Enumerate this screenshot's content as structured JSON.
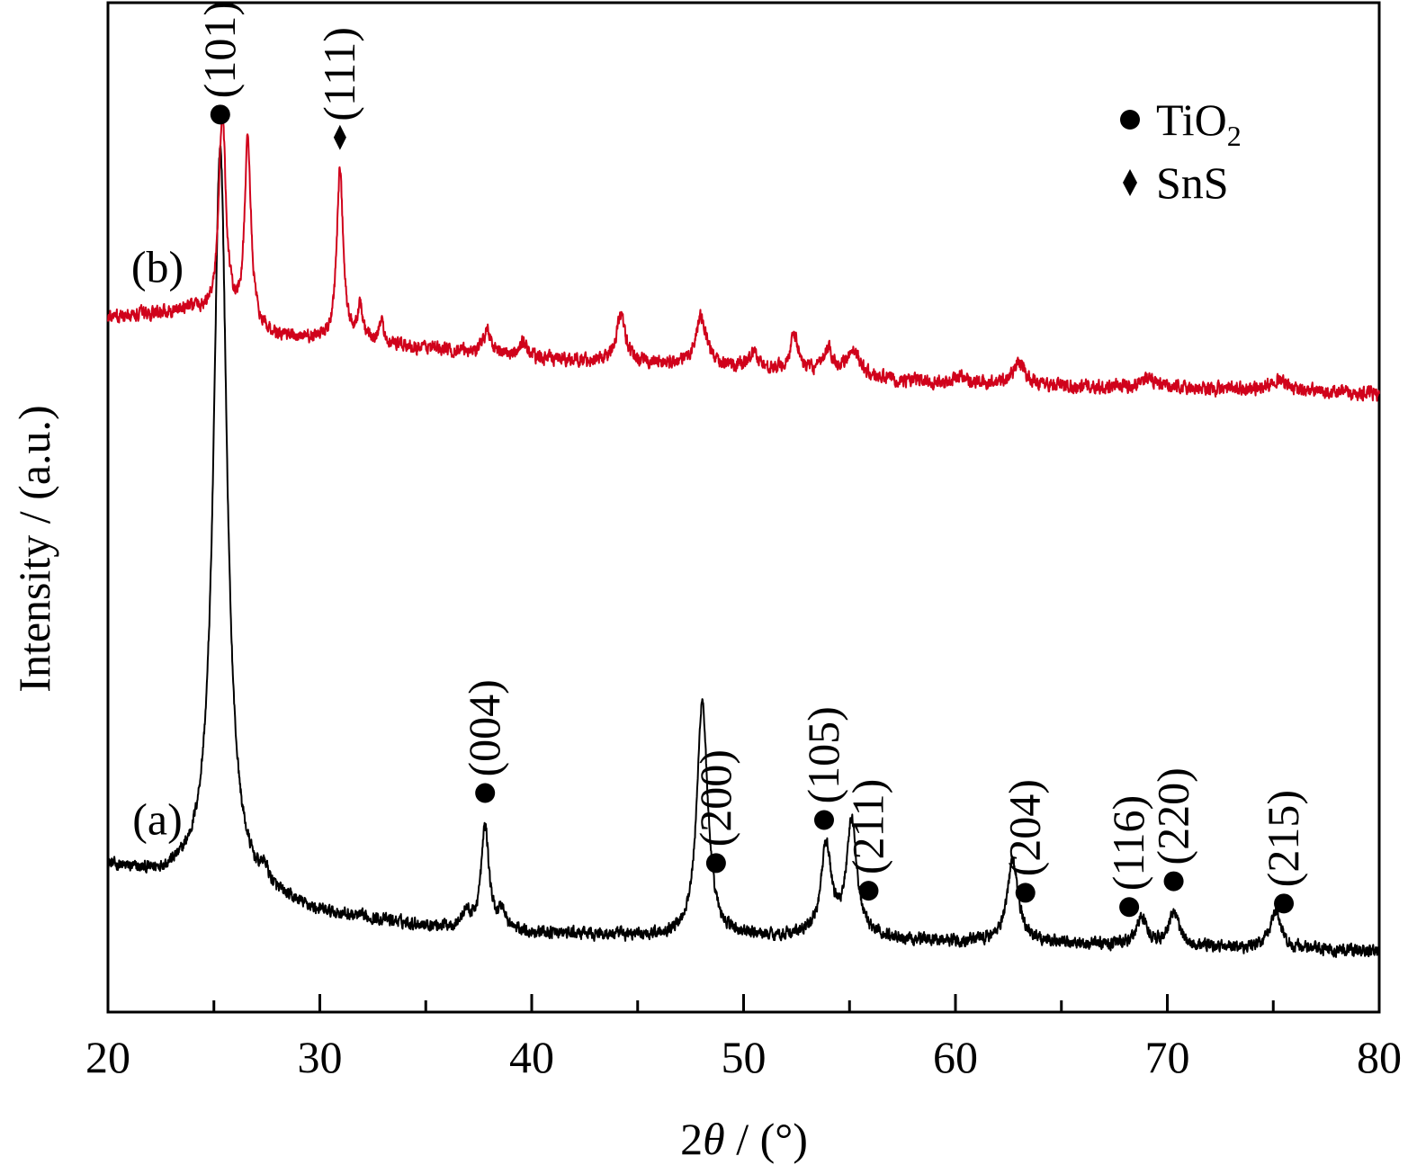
{
  "chart_data": {
    "type": "line",
    "title": "",
    "xlabel_prefix": "2",
    "xlabel_symbol": "θ",
    "xlabel_suffix": " / (°)",
    "ylabel": "Intensity / (a.u.)",
    "xlim": [
      20,
      80
    ],
    "ylim": [
      0,
      100
    ],
    "x_ticks": [
      20,
      30,
      40,
      50,
      60,
      70,
      80
    ],
    "x_minor_ticks": [
      25,
      35,
      45,
      55,
      65,
      75
    ],
    "grid": false,
    "legend": {
      "position": "top-right",
      "entries": [
        {
          "marker": "circle",
          "text_main": "TiO",
          "text_sub": "2"
        },
        {
          "marker": "diamond",
          "text_main": "SnS",
          "text_sub": ""
        }
      ]
    },
    "series": [
      {
        "label": "(a)",
        "color": "#000000",
        "baseline": [
          [
            20,
            14.4
          ],
          [
            22,
            13.4
          ],
          [
            25,
            13.0
          ],
          [
            27,
            11.5
          ],
          [
            30,
            9.7
          ],
          [
            35,
            8.5
          ],
          [
            40,
            7.8
          ],
          [
            45,
            7.5
          ],
          [
            50,
            7.4
          ],
          [
            55,
            7.3
          ],
          [
            60,
            7.0
          ],
          [
            65,
            6.8
          ],
          [
            70,
            6.5
          ],
          [
            75,
            6.3
          ],
          [
            80,
            6.0
          ]
        ],
        "peaks": [
          {
            "x": 25.3,
            "height": 73.0,
            "width": 0.38
          },
          {
            "x": 27.4,
            "height": 1.5,
            "width": 0.2
          },
          {
            "x": 36.9,
            "height": 1.5,
            "width": 0.2
          },
          {
            "x": 37.8,
            "height": 10.2,
            "width": 0.22
          },
          {
            "x": 38.6,
            "height": 1.8,
            "width": 0.2
          },
          {
            "x": 48.05,
            "height": 23.5,
            "width": 0.3
          },
          {
            "x": 53.9,
            "height": 8.8,
            "width": 0.3
          },
          {
            "x": 55.1,
            "height": 11.3,
            "width": 0.3
          },
          {
            "x": 62.7,
            "height": 8.0,
            "width": 0.32
          },
          {
            "x": 68.8,
            "height": 2.8,
            "width": 0.3
          },
          {
            "x": 70.3,
            "height": 3.2,
            "width": 0.3
          },
          {
            "x": 75.1,
            "height": 3.7,
            "width": 0.3
          }
        ],
        "noise": 0.9,
        "annotations": [
          {
            "label": "(101)",
            "marker": "circle",
            "x": 25.3
          },
          {
            "label": "(004)",
            "marker": "circle",
            "x": 37.8
          },
          {
            "label": "(200)",
            "marker": "circle",
            "x": 48.7
          },
          {
            "label": "(105)",
            "marker": "circle",
            "x": 53.8
          },
          {
            "label": "(211)",
            "marker": "circle",
            "x": 55.9
          },
          {
            "label": "(204)",
            "marker": "circle",
            "x": 63.3
          },
          {
            "label": "(116)",
            "marker": "circle",
            "x": 68.2
          },
          {
            "label": "(220)",
            "marker": "circle",
            "x": 70.3
          },
          {
            "label": "(215)",
            "marker": "circle",
            "x": 75.5
          }
        ]
      },
      {
        "label": "(b)",
        "color": "#d0021b",
        "baseline": [
          [
            20,
            68.7
          ],
          [
            24,
            69.6
          ],
          [
            26,
            68.0
          ],
          [
            28,
            66.8
          ],
          [
            30,
            66.5
          ],
          [
            35,
            65.8
          ],
          [
            40,
            64.8
          ],
          [
            45,
            64.3
          ],
          [
            50,
            63.8
          ],
          [
            55,
            62.8
          ],
          [
            60,
            62.3
          ],
          [
            65,
            62.0
          ],
          [
            70,
            61.8
          ],
          [
            75,
            61.6
          ],
          [
            80,
            61.2
          ]
        ],
        "peaks": [
          {
            "x": 25.4,
            "height": 20.5,
            "width": 0.2
          },
          {
            "x": 26.6,
            "height": 18.5,
            "width": 0.18
          },
          {
            "x": 30.95,
            "height": 17.0,
            "width": 0.18
          },
          {
            "x": 31.9,
            "height": 3.5,
            "width": 0.15
          },
          {
            "x": 32.9,
            "height": 1.8,
            "width": 0.2
          },
          {
            "x": 37.9,
            "height": 2.3,
            "width": 0.22
          },
          {
            "x": 39.6,
            "height": 1.5,
            "width": 0.2
          },
          {
            "x": 44.2,
            "height": 4.7,
            "width": 0.25
          },
          {
            "x": 48.0,
            "height": 5.0,
            "width": 0.3
          },
          {
            "x": 50.5,
            "height": 1.6,
            "width": 0.25
          },
          {
            "x": 52.4,
            "height": 3.5,
            "width": 0.25
          },
          {
            "x": 54.0,
            "height": 2.4,
            "width": 0.3
          },
          {
            "x": 55.2,
            "height": 2.8,
            "width": 0.35
          },
          {
            "x": 60.3,
            "height": 0.8,
            "width": 0.3
          },
          {
            "x": 63.0,
            "height": 2.2,
            "width": 0.35
          },
          {
            "x": 69.0,
            "height": 1.0,
            "width": 0.4
          },
          {
            "x": 75.2,
            "height": 1.2,
            "width": 0.4
          }
        ],
        "noise": 1.0,
        "annotations": [
          {
            "label": "(111)",
            "marker": "diamond",
            "x": 30.95
          }
        ]
      }
    ]
  }
}
